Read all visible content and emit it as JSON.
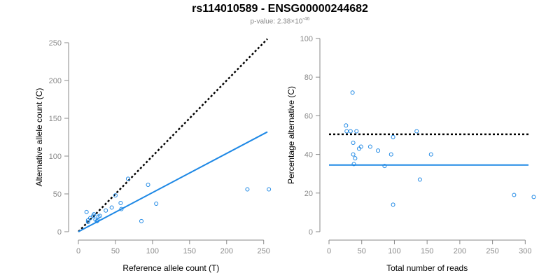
{
  "header": {
    "title": "rs114010589 - ENSG00000244682",
    "pvalue_label": "p-value: 2.38×10",
    "pvalue_exp": "-46"
  },
  "colors": {
    "points": "#1e88e5",
    "fit": "#1e88e5",
    "reference": "#000000",
    "axis": "#8a8a8a"
  },
  "chart_data": [
    {
      "type": "scatter",
      "title": "",
      "xlabel": "Reference allele count (T)",
      "ylabel": "Alternative allele count (C)",
      "xlim": [
        0,
        255
      ],
      "ylim": [
        0,
        250
      ],
      "xticks": [
        0,
        50,
        100,
        150,
        200,
        250
      ],
      "yticks": [
        0,
        50,
        100,
        150,
        200,
        250
      ],
      "grid": false,
      "points": [
        {
          "x": 11,
          "y": 26
        },
        {
          "x": 13,
          "y": 15
        },
        {
          "x": 13,
          "y": 13
        },
        {
          "x": 16,
          "y": 18
        },
        {
          "x": 20,
          "y": 21
        },
        {
          "x": 21,
          "y": 23
        },
        {
          "x": 23,
          "y": 16
        },
        {
          "x": 25,
          "y": 14
        },
        {
          "x": 26,
          "y": 15
        },
        {
          "x": 27,
          "y": 20
        },
        {
          "x": 29,
          "y": 21
        },
        {
          "x": 37,
          "y": 28
        },
        {
          "x": 45,
          "y": 32
        },
        {
          "x": 50,
          "y": 48
        },
        {
          "x": 57,
          "y": 38
        },
        {
          "x": 58,
          "y": 30
        },
        {
          "x": 67,
          "y": 70
        },
        {
          "x": 85,
          "y": 14
        },
        {
          "x": 94,
          "y": 62
        },
        {
          "x": 105,
          "y": 37
        },
        {
          "x": 228,
          "y": 56
        },
        {
          "x": 257,
          "y": 56
        }
      ],
      "lines": [
        {
          "kind": "reference",
          "style": "dotted",
          "x": [
            0,
            255
          ],
          "y": [
            0,
            255
          ]
        },
        {
          "kind": "fit",
          "style": "solid",
          "x": [
            0,
            255
          ],
          "y": [
            0,
            132
          ]
        }
      ]
    },
    {
      "type": "scatter",
      "title": "",
      "xlabel": "Total number of reads",
      "ylabel": "Percentage alternative (C)",
      "xlim": [
        0,
        305
      ],
      "ylim": [
        0,
        100
      ],
      "xticks": [
        0,
        50,
        100,
        150,
        200,
        250,
        300
      ],
      "yticks": [
        0,
        20,
        40,
        60,
        80,
        100
      ],
      "grid": false,
      "points": [
        {
          "x": 26,
          "y": 55
        },
        {
          "x": 27,
          "y": 52
        },
        {
          "x": 33,
          "y": 52
        },
        {
          "x": 36,
          "y": 72
        },
        {
          "x": 37,
          "y": 46
        },
        {
          "x": 37,
          "y": 40
        },
        {
          "x": 38,
          "y": 35
        },
        {
          "x": 40,
          "y": 38
        },
        {
          "x": 42,
          "y": 52
        },
        {
          "x": 46,
          "y": 43
        },
        {
          "x": 49,
          "y": 44
        },
        {
          "x": 63,
          "y": 44
        },
        {
          "x": 75,
          "y": 42
        },
        {
          "x": 85,
          "y": 34
        },
        {
          "x": 95,
          "y": 40
        },
        {
          "x": 98,
          "y": 49
        },
        {
          "x": 98,
          "y": 14
        },
        {
          "x": 134,
          "y": 52
        },
        {
          "x": 139,
          "y": 27
        },
        {
          "x": 156,
          "y": 40
        },
        {
          "x": 283,
          "y": 19
        },
        {
          "x": 313,
          "y": 18
        }
      ],
      "lines": [
        {
          "kind": "reference",
          "style": "dotted",
          "x": [
            0,
            305
          ],
          "y": [
            50.4,
            50.4
          ]
        },
        {
          "kind": "fit",
          "style": "solid",
          "x": [
            0,
            305
          ],
          "y": [
            34.5,
            34.5
          ]
        }
      ]
    }
  ]
}
